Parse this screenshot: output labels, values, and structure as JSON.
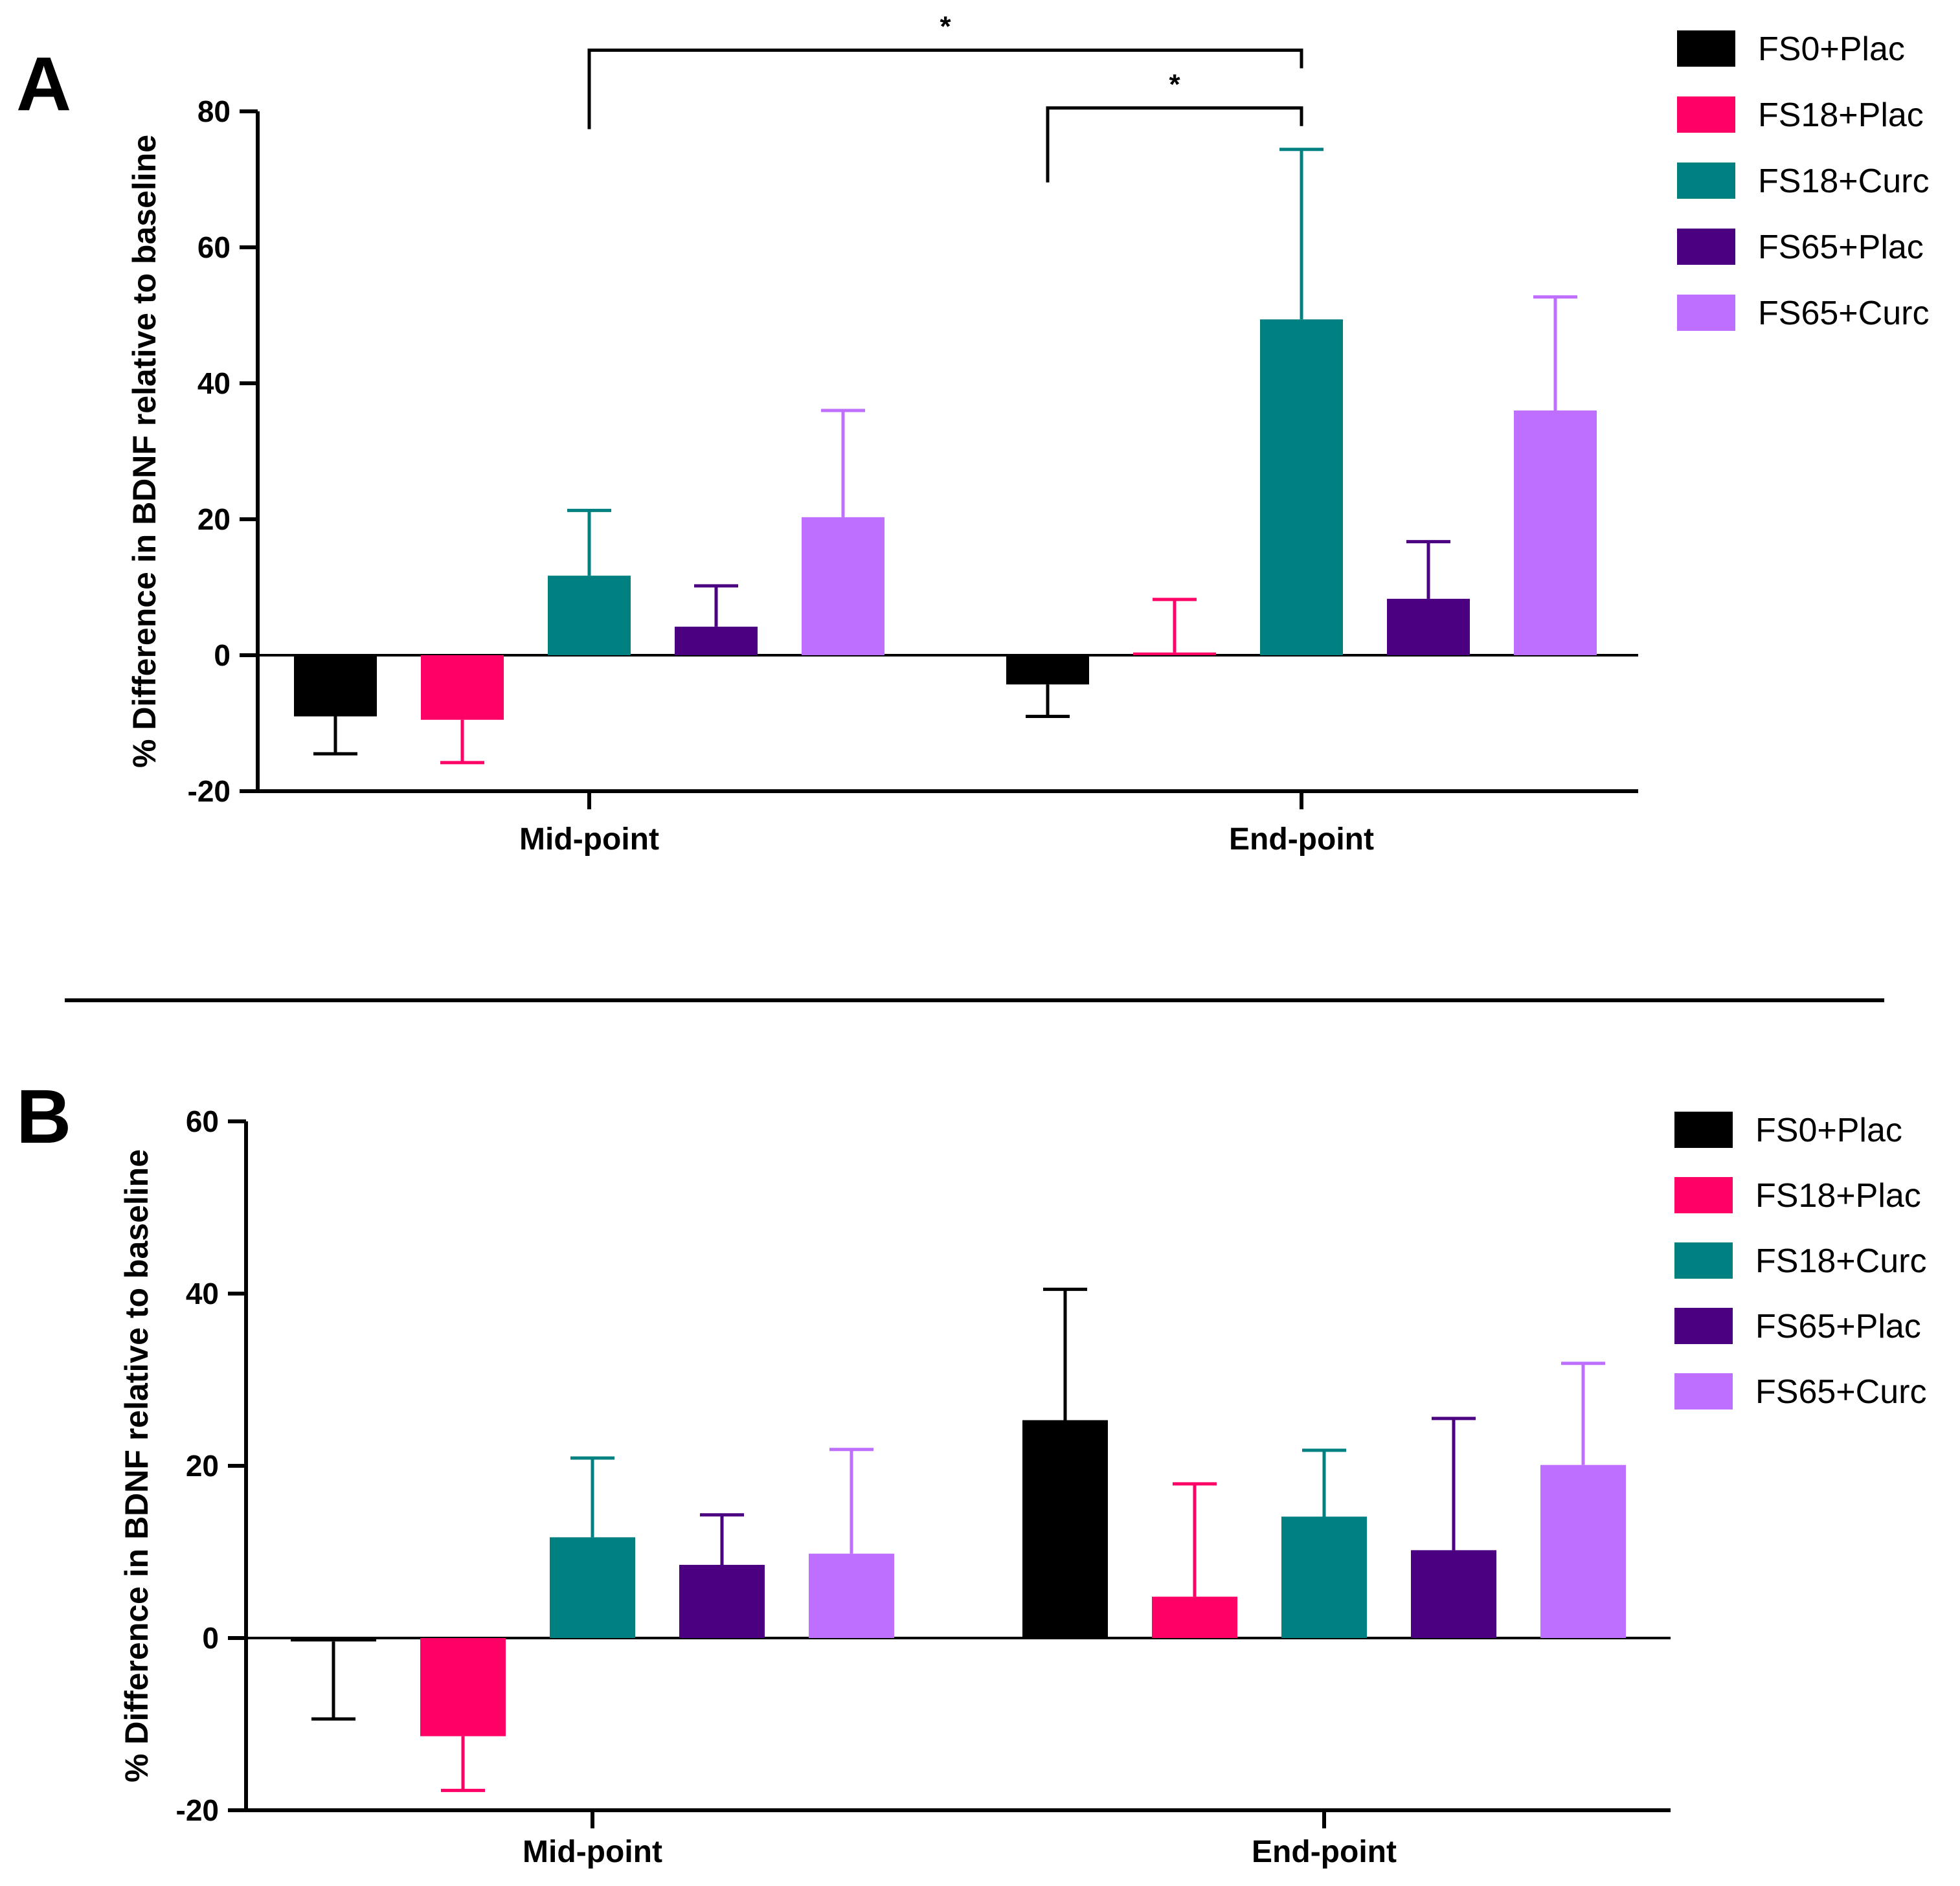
{
  "figure": {
    "panel_letters": [
      "A",
      "B"
    ]
  },
  "chart_data": [
    {
      "type": "bar",
      "panel": "A",
      "ylabel": "% Difference in BDNF relative to baseline",
      "xlabel": "",
      "categories": [
        "Mid-point",
        "End-point"
      ],
      "ylim": [
        -20,
        80
      ],
      "yticks": [
        -20,
        0,
        20,
        40,
        60,
        80
      ],
      "legend_position": "top-right",
      "series": [
        {
          "name": "FS0+Plac",
          "color": "#000000",
          "values": [
            -9,
            -4.3
          ],
          "error": [
            5.5,
            4.7
          ],
          "error_dir": [
            "down",
            "down"
          ]
        },
        {
          "name": "FS18+Plac",
          "color": "#ff0066",
          "values": [
            -9.5,
            0.4
          ],
          "error": [
            6.3,
            7.8
          ],
          "error_dir": [
            "down",
            "up"
          ]
        },
        {
          "name": "FS18+Curc",
          "color": "#008080",
          "values": [
            11.7,
            49.4
          ],
          "error": [
            9.6,
            25
          ],
          "error_dir": [
            "up",
            "up"
          ]
        },
        {
          "name": "FS65+Plac",
          "color": "#4b0082",
          "values": [
            4.2,
            8.3
          ],
          "error": [
            6,
            8.4
          ],
          "error_dir": [
            "up",
            "up"
          ]
        },
        {
          "name": "FS65+Curc",
          "color": "#bf6fff",
          "values": [
            20.3,
            36
          ],
          "error": [
            15.7,
            16.7
          ],
          "error_dir": [
            "up",
            "up"
          ]
        }
      ],
      "significance": [
        {
          "label": "*",
          "from": {
            "category": 0,
            "series": 2
          },
          "to": {
            "category": 1,
            "series": 2
          },
          "level": 89
        },
        {
          "label": "*",
          "from": {
            "category": 1,
            "series": 0
          },
          "to": {
            "category": 1,
            "series": 2
          },
          "level": 80.5
        }
      ]
    },
    {
      "type": "bar",
      "panel": "B",
      "ylabel": "% Difference in BDNF relative to baseline",
      "xlabel": "",
      "categories": [
        "Mid-point",
        "End-point"
      ],
      "ylim": [
        -20,
        60
      ],
      "yticks": [
        -20,
        0,
        20,
        40,
        60
      ],
      "legend_position": "top-right",
      "series": [
        {
          "name": "FS0+Plac",
          "color": "#000000",
          "values": [
            -0.4,
            25.3
          ],
          "error": [
            9,
            15.2
          ],
          "error_dir": [
            "down",
            "up"
          ]
        },
        {
          "name": "FS18+Plac",
          "color": "#ff0066",
          "values": [
            -11.4,
            4.8
          ],
          "error": [
            6.3,
            13.1
          ],
          "error_dir": [
            "down",
            "up"
          ]
        },
        {
          "name": "FS18+Curc",
          "color": "#008080",
          "values": [
            11.7,
            14.1
          ],
          "error": [
            9.2,
            7.7
          ],
          "error_dir": [
            "up",
            "up"
          ]
        },
        {
          "name": "FS65+Plac",
          "color": "#4b0082",
          "values": [
            8.5,
            10.2
          ],
          "error": [
            5.8,
            15.3
          ],
          "error_dir": [
            "up",
            "up"
          ]
        },
        {
          "name": "FS65+Curc",
          "color": "#bf6fff",
          "values": [
            9.8,
            20.1
          ],
          "error": [
            12.1,
            11.8
          ],
          "error_dir": [
            "up",
            "up"
          ]
        }
      ],
      "significance": []
    }
  ]
}
